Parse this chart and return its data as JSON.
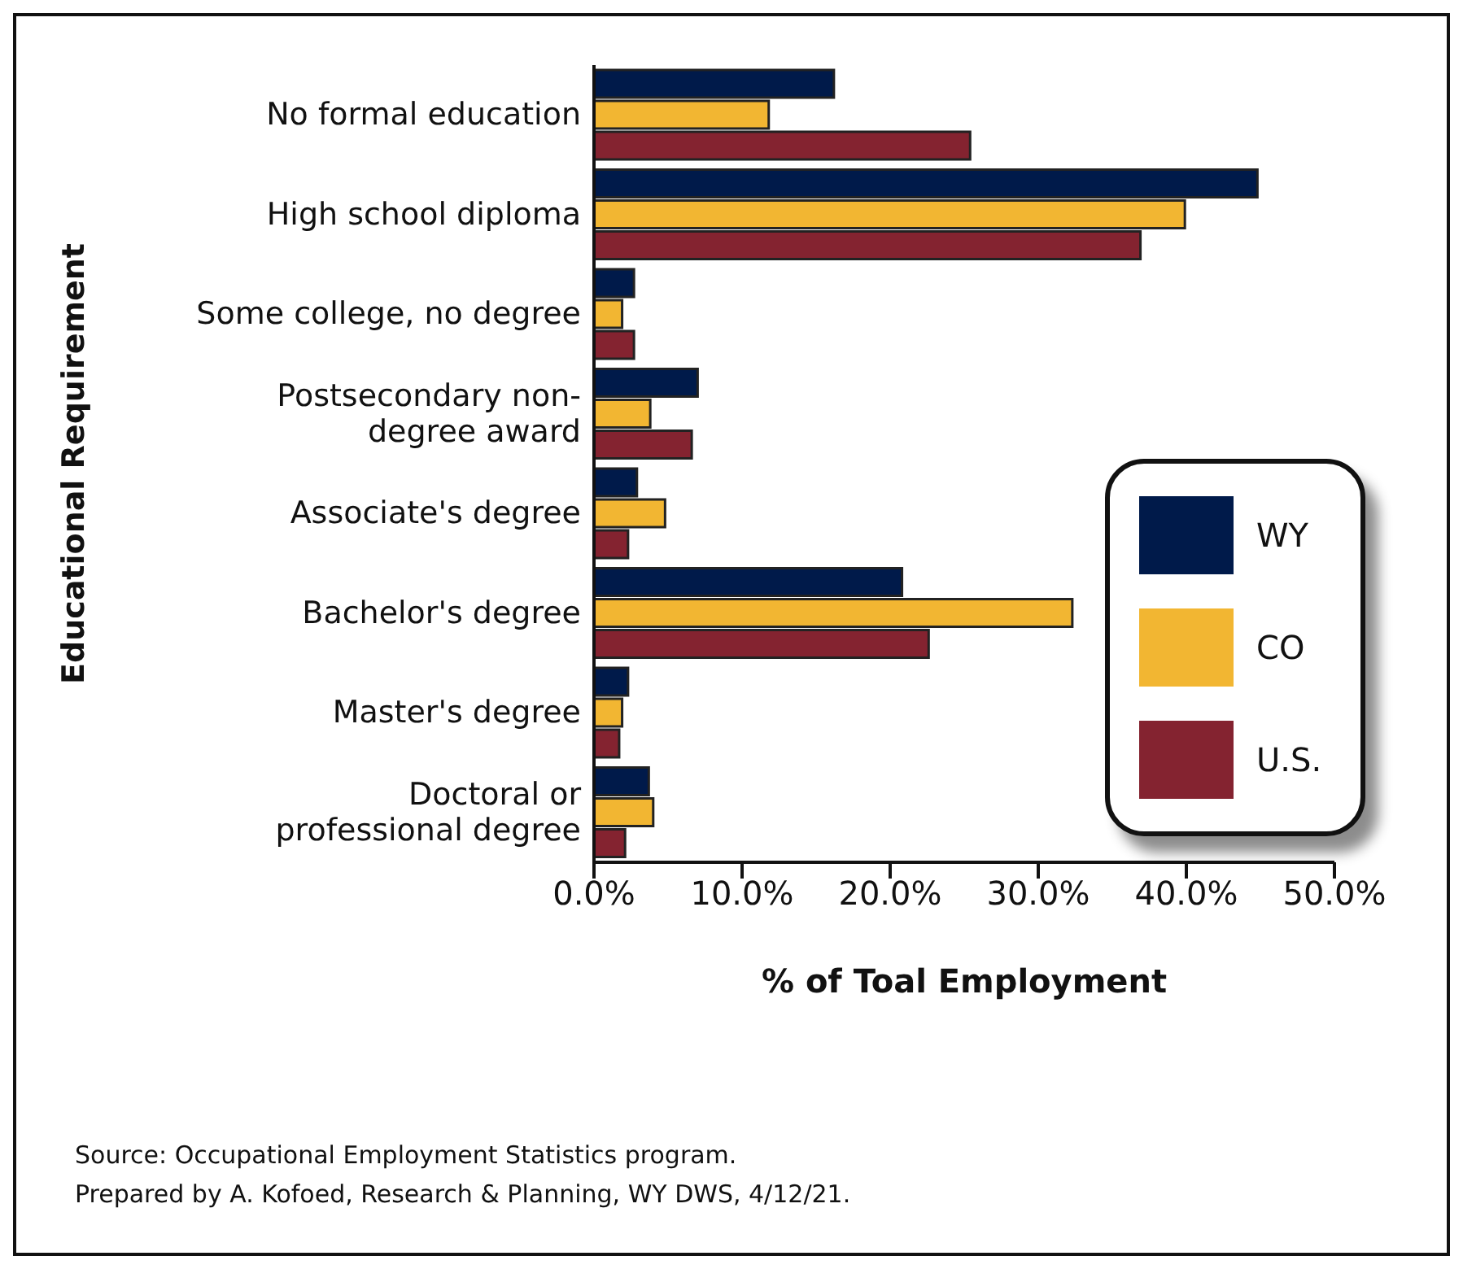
{
  "chart_data": {
    "type": "bar",
    "orientation": "horizontal",
    "xlabel": "% of Toal Employment",
    "ylabel": "Educational Requirement",
    "categories": [
      "No formal education",
      "High school diploma",
      "Some college, no degree",
      "Postsecondary non-\ndegree award",
      "Associate's degree",
      "Bachelor's degree",
      "Master's degree",
      "Doctoral or\nprofessional degree"
    ],
    "series": [
      {
        "name": "WY",
        "color": "#001a4a",
        "values": [
          16.2,
          44.8,
          2.7,
          7.0,
          2.9,
          20.8,
          2.3,
          3.7
        ]
      },
      {
        "name": "CO",
        "color": "#f2b632",
        "values": [
          11.8,
          39.9,
          1.9,
          3.8,
          4.8,
          32.3,
          1.9,
          4.0
        ]
      },
      {
        "name": "U.S.",
        "color": "#842330",
        "values": [
          25.4,
          36.9,
          2.7,
          6.6,
          2.3,
          22.6,
          1.7,
          2.1
        ]
      }
    ],
    "xlim": [
      0,
      50
    ],
    "xticks": [
      {
        "value": 0,
        "label": "0.0%"
      },
      {
        "value": 10,
        "label": "10.0%"
      },
      {
        "value": 20,
        "label": "20.0%"
      },
      {
        "value": 30,
        "label": "30.0%"
      },
      {
        "value": 40,
        "label": "40.0%"
      },
      {
        "value": 50,
        "label": "50.0%"
      }
    ],
    "grid": false,
    "legend": "right",
    "annotations": [
      "Source: Occupational Employment Statistics program.",
      "Prepared by A. Kofoed, Research & Planning, WY DWS, 4/12/21."
    ]
  }
}
